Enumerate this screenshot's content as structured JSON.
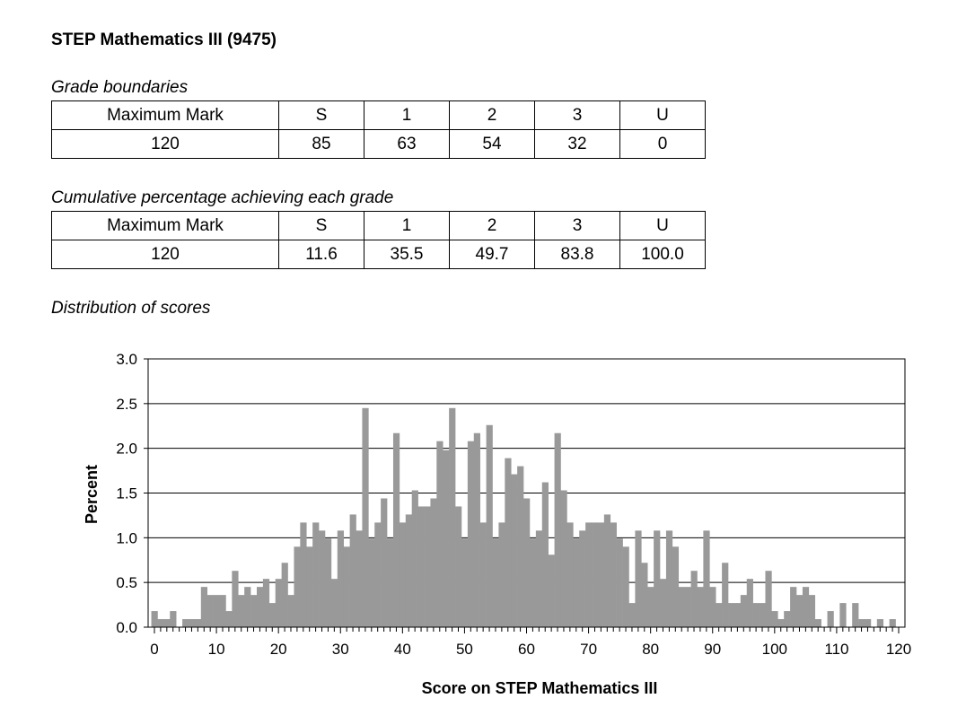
{
  "title": "STEP Mathematics III (9475)",
  "grade_boundaries": {
    "caption": "Grade boundaries",
    "header": [
      "Maximum Mark",
      "S",
      "1",
      "2",
      "3",
      "U"
    ],
    "row": [
      "120",
      "85",
      "63",
      "54",
      "32",
      "0"
    ]
  },
  "cumulative": {
    "caption": "Cumulative percentage achieving each grade",
    "header": [
      "Maximum Mark",
      "S",
      "1",
      "2",
      "3",
      "U"
    ],
    "row": [
      "120",
      "11.6",
      "35.5",
      "49.7",
      "83.8",
      "100.0"
    ]
  },
  "distribution_caption": "Distribution of scores",
  "chart_data": {
    "type": "bar",
    "xlabel": "Score on STEP Mathematics III",
    "ylabel": "Percent",
    "xlim": [
      0,
      120
    ],
    "ylim": [
      0,
      3.0
    ],
    "x_ticks": [
      "0",
      "10",
      "20",
      "30",
      "40",
      "50",
      "60",
      "70",
      "80",
      "90",
      "100",
      "110",
      "120"
    ],
    "y_ticks": [
      "0.0",
      "0.5",
      "1.0",
      "1.5",
      "2.0",
      "2.5",
      "3.0"
    ],
    "grid": "horizontal",
    "bar_color": "#999999",
    "categories": [
      0,
      1,
      2,
      3,
      4,
      5,
      6,
      7,
      8,
      9,
      10,
      11,
      12,
      13,
      14,
      15,
      16,
      17,
      18,
      19,
      20,
      21,
      22,
      23,
      24,
      25,
      26,
      27,
      28,
      29,
      30,
      31,
      32,
      33,
      34,
      35,
      36,
      37,
      38,
      39,
      40,
      41,
      42,
      43,
      44,
      45,
      46,
      47,
      48,
      49,
      50,
      51,
      52,
      53,
      54,
      55,
      56,
      57,
      58,
      59,
      60,
      61,
      62,
      63,
      64,
      65,
      66,
      67,
      68,
      69,
      70,
      71,
      72,
      73,
      74,
      75,
      76,
      77,
      78,
      79,
      80,
      81,
      82,
      83,
      84,
      85,
      86,
      87,
      88,
      89,
      90,
      91,
      92,
      93,
      94,
      95,
      96,
      97,
      98,
      99,
      100,
      101,
      102,
      103,
      104,
      105,
      106,
      107,
      108,
      109,
      110,
      111,
      112,
      113,
      114,
      115,
      116,
      117,
      118,
      119,
      120
    ],
    "values": [
      0.18,
      0.09,
      0.09,
      0.18,
      0.0,
      0.09,
      0.09,
      0.09,
      0.45,
      0.36,
      0.36,
      0.36,
      0.18,
      0.63,
      0.36,
      0.45,
      0.36,
      0.45,
      0.54,
      0.27,
      0.54,
      0.72,
      0.36,
      0.9,
      1.17,
      0.9,
      1.17,
      1.08,
      0.99,
      0.54,
      1.08,
      0.9,
      1.26,
      1.08,
      2.45,
      0.99,
      1.17,
      1.44,
      0.99,
      2.17,
      1.17,
      1.26,
      1.53,
      1.35,
      1.35,
      1.44,
      2.08,
      1.98,
      2.45,
      1.35,
      0.99,
      2.08,
      2.17,
      1.17,
      2.26,
      0.99,
      1.17,
      1.89,
      1.71,
      1.8,
      1.44,
      0.99,
      1.08,
      1.62,
      0.81,
      2.17,
      1.53,
      1.17,
      0.99,
      1.08,
      1.17,
      1.17,
      1.17,
      1.26,
      1.17,
      0.99,
      0.9,
      0.27,
      1.08,
      0.72,
      0.45,
      1.08,
      0.54,
      1.08,
      0.9,
      0.45,
      0.45,
      0.63,
      0.45,
      1.08,
      0.45,
      0.27,
      0.72,
      0.27,
      0.27,
      0.36,
      0.54,
      0.27,
      0.27,
      0.63,
      0.18,
      0.09,
      0.18,
      0.45,
      0.36,
      0.45,
      0.36,
      0.09,
      0.0,
      0.18,
      0.0,
      0.27,
      0.0,
      0.27,
      0.09,
      0.09,
      0.0,
      0.09,
      0.0,
      0.09,
      0.0
    ]
  }
}
